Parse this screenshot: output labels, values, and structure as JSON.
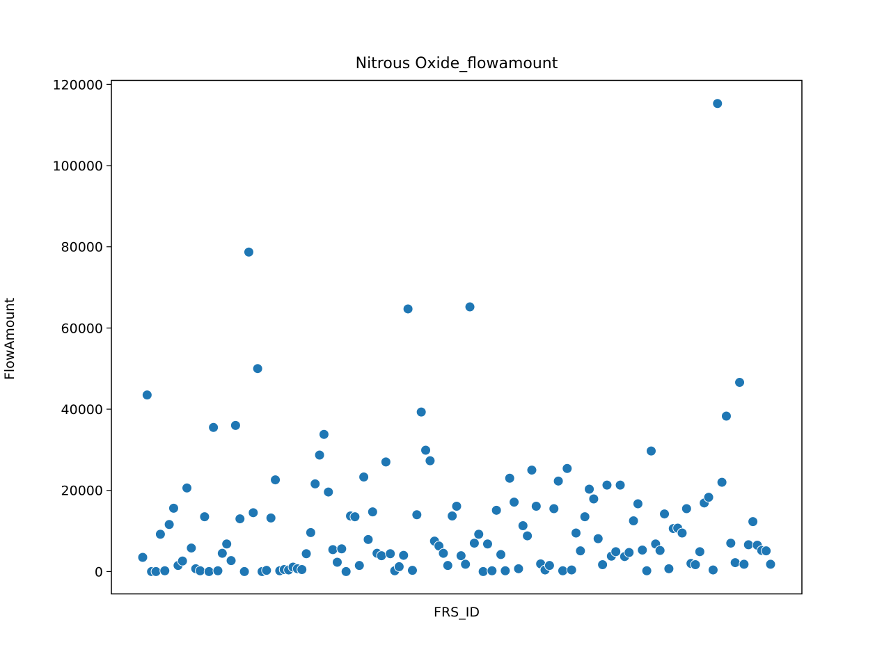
{
  "chart_data": {
    "type": "scatter",
    "title": "Nitrous Oxide_flowamount",
    "xlabel": "FRS_ID",
    "ylabel": "FlowAmount",
    "ylim": [
      -5500,
      121000
    ],
    "yticks": [
      0,
      20000,
      40000,
      60000,
      80000,
      100000,
      120000
    ],
    "yticks_labels": [
      "0",
      "20000",
      "40000",
      "60000",
      "80000",
      "100000",
      "120000"
    ],
    "x_tick_labels_shown": false,
    "grid": false,
    "marker_color": "#1f77b4",
    "series": [
      {
        "values": [
          3500,
          43500,
          0,
          0,
          9200,
          200,
          11600,
          15600,
          1500,
          2600,
          20600,
          5800,
          700,
          200,
          13500,
          0,
          35500,
          200,
          4500,
          6800,
          2700,
          36000,
          13000,
          0,
          78700,
          14500,
          50000,
          0,
          300,
          13200,
          22600,
          200,
          500,
          400,
          1100,
          700,
          500,
          4400,
          9600,
          21600,
          28700,
          33800,
          19600,
          5400,
          2300,
          5600,
          0,
          13700,
          13500,
          1500,
          23300,
          7900,
          14700,
          4500,
          3900,
          27000,
          4400,
          200,
          1200,
          4000,
          64700,
          300,
          14000,
          39300,
          29900,
          27300,
          7500,
          6300,
          4500,
          1500,
          13700,
          16100,
          3900,
          1800,
          65200,
          7000,
          9200,
          0,
          6800,
          200,
          15100,
          4200,
          200,
          23000,
          17100,
          700,
          11300,
          8800,
          25000,
          16100,
          1900,
          400,
          1500,
          15500,
          22300,
          200,
          25400,
          400,
          9500,
          5100,
          13500,
          20300,
          17900,
          8100,
          1700,
          21300,
          3800,
          4900,
          21300,
          3700,
          4700,
          12500,
          16700,
          5300,
          200,
          29700,
          6800,
          5200,
          14200,
          700,
          10600,
          10700,
          9500,
          15500,
          2000,
          1700,
          4900,
          16900,
          18300,
          400,
          115300,
          22000,
          38300,
          7000,
          2200,
          46600,
          1800,
          6600,
          12300,
          6500,
          5200,
          5100,
          1800
        ]
      }
    ]
  }
}
